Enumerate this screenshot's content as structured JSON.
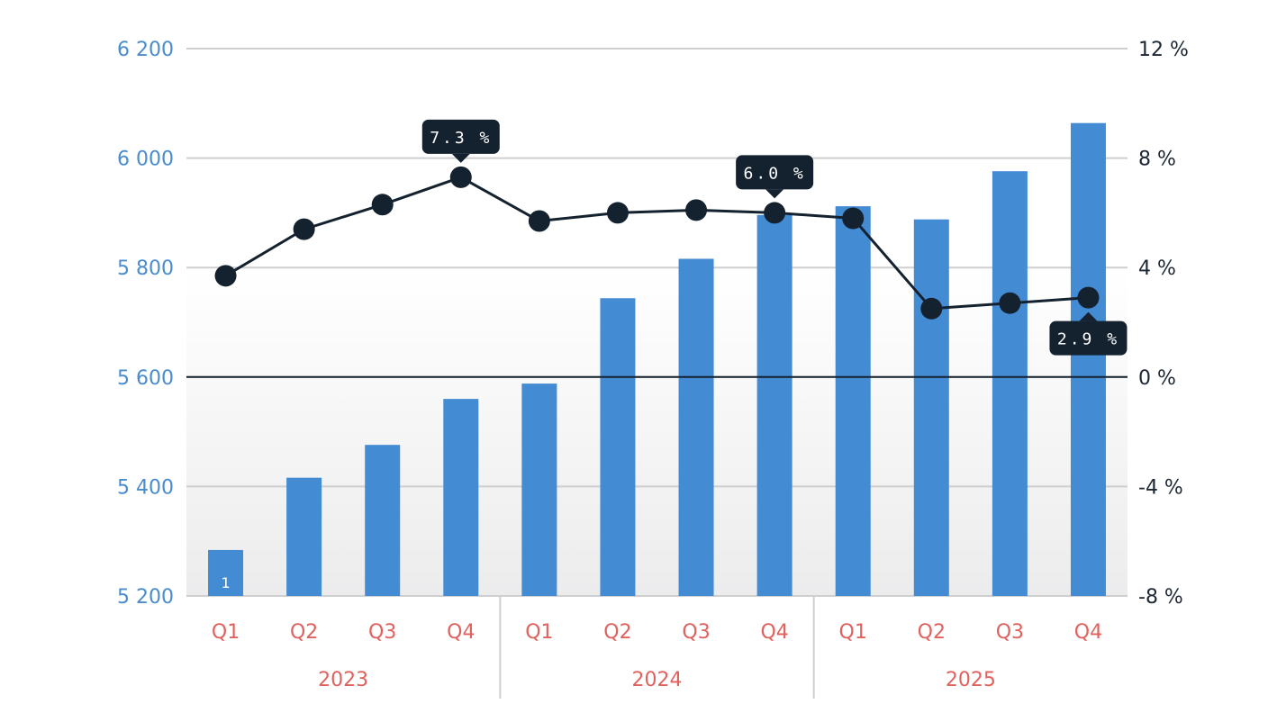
{
  "chart_data": {
    "type": "bar",
    "categories": [
      "Q1",
      "Q2",
      "Q3",
      "Q4",
      "Q1",
      "Q2",
      "Q3",
      "Q4",
      "Q1",
      "Q2",
      "Q3",
      "Q4"
    ],
    "groups": [
      {
        "label": "2023",
        "span": 4
      },
      {
        "label": "2024",
        "span": 4
      },
      {
        "label": "2025",
        "span": 4
      }
    ],
    "series": [
      {
        "name": "Value",
        "type": "bar",
        "axis": "left",
        "color": "#438bd3",
        "values": [
          5284,
          5416,
          5476,
          5560,
          5588,
          5744,
          5816,
          5896,
          5912,
          5888,
          5976,
          6064
        ]
      },
      {
        "name": "Change",
        "type": "line",
        "axis": "right",
        "color": "#14222f",
        "values": [
          3.7,
          5.4,
          6.3,
          7.3,
          5.7,
          6.0,
          6.1,
          6.0,
          5.8,
          2.5,
          2.7,
          2.9
        ]
      }
    ],
    "y_left": {
      "min": 5200,
      "max": 6200,
      "ticks": [
        5200,
        5400,
        5600,
        5800,
        6000,
        6200
      ],
      "tick_labels": [
        "5 200",
        "5 400",
        "5 600",
        "5 800",
        "6 000",
        "6 200"
      ]
    },
    "y_right": {
      "min": -8,
      "max": 12,
      "ticks": [
        -8,
        -4,
        0,
        4,
        8,
        12
      ],
      "tick_labels": [
        "-8 %",
        "-4 %",
        "0 %",
        "4 %",
        "8 %",
        "12 %"
      ]
    },
    "bar_labels": [
      {
        "index": 0,
        "text": "1"
      }
    ],
    "callouts": [
      {
        "index": 3,
        "text": "7.3 %",
        "position": "above"
      },
      {
        "index": 7,
        "text": "6.0 %",
        "position": "above"
      },
      {
        "index": 11,
        "text": "2.9 %",
        "position": "below"
      }
    ],
    "zero_line_value": 0,
    "grid": true,
    "title": "",
    "xlabel": "",
    "ylabel": ""
  }
}
